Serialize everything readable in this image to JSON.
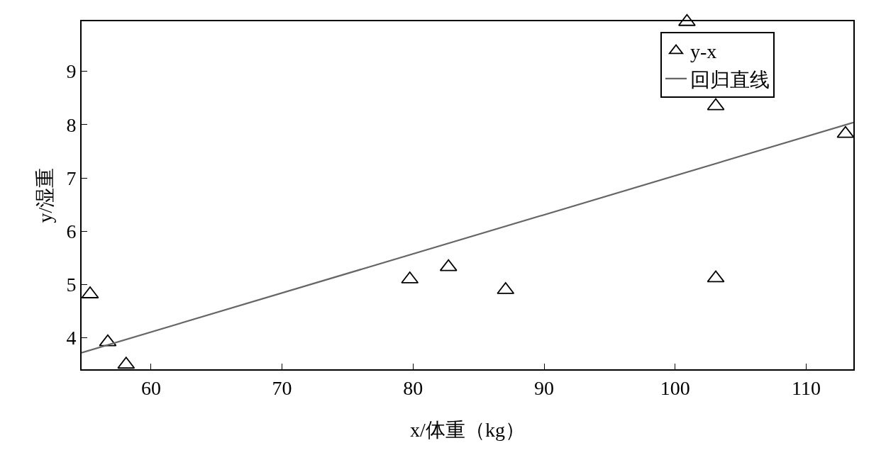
{
  "chart_data": {
    "type": "scatter",
    "xlabel": "x/体重（kg）",
    "ylabel": "y/湿重",
    "xlim": [
      54.7,
      113.6
    ],
    "ylim": [
      3.41,
      9.94
    ],
    "xticks": [
      60,
      70,
      80,
      90,
      100,
      110
    ],
    "yticks": [
      4,
      5,
      6,
      7,
      8,
      9
    ],
    "grid": false,
    "legend": "top right",
    "series": [
      {
        "name": "y-x",
        "color": "#000000",
        "marker": "triangle",
        "x": [
          55.35,
          56.7,
          58.1,
          79.75,
          82.7,
          87.06,
          100.9,
          103.1,
          103.1,
          113.0
        ],
        "values": [
          4.82,
          3.92,
          3.5,
          5.1,
          5.33,
          4.9,
          9.93,
          8.35,
          5.12,
          7.83
        ]
      },
      {
        "name": "回归直线",
        "type": "line",
        "marker": "none",
        "color": "#666666",
        "line_style": "solid",
        "x": [
          54.7,
          113.6
        ],
        "values": [
          3.72,
          8.04
        ]
      }
    ]
  }
}
